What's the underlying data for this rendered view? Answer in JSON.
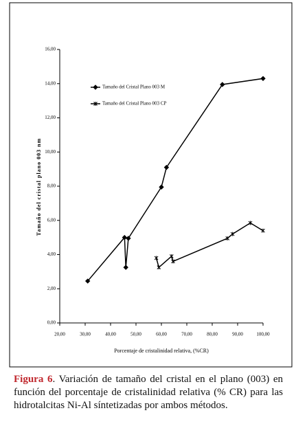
{
  "chart_data": {
    "type": "line",
    "xlabel": "Porcentaje de cristalinidad relativa, (%CR)",
    "ylabel": "Tamaño del cristal plano 003 nm",
    "xlim": [
      20,
      100
    ],
    "ylim": [
      0,
      16
    ],
    "xticks": [
      {
        "value": 20,
        "label": "20,00"
      },
      {
        "value": 30,
        "label": "30,00"
      },
      {
        "value": 40,
        "label": "40,00"
      },
      {
        "value": 50,
        "label": "50,00"
      },
      {
        "value": 60,
        "label": "60,00"
      },
      {
        "value": 70,
        "label": "70,00"
      },
      {
        "value": 80,
        "label": "80,00"
      },
      {
        "value": 90,
        "label": "90,00"
      },
      {
        "value": 100,
        "label": "100,00"
      }
    ],
    "yticks": [
      {
        "value": 0,
        "label": "0,00"
      },
      {
        "value": 2,
        "label": "2,00"
      },
      {
        "value": 4,
        "label": "4,00"
      },
      {
        "value": 6,
        "label": "6,00"
      },
      {
        "value": 8,
        "label": "8,00"
      },
      {
        "value": 10,
        "label": "10,00"
      },
      {
        "value": 12,
        "label": "12,00"
      },
      {
        "value": 14,
        "label": "14,00"
      },
      {
        "value": 16,
        "label": "16,00"
      }
    ],
    "legend": "upper left",
    "series": [
      {
        "name": "Tamaño del Cristal Plano 003 M",
        "color": "#000000",
        "marker": "diamond",
        "x": [
          31,
          45.5,
          46,
          47,
          60,
          62,
          84,
          100
        ],
        "values": [
          2.45,
          5.0,
          3.25,
          4.95,
          7.95,
          9.1,
          13.95,
          14.3
        ]
      },
      {
        "name": "Tamaño del Cristal Plano 003 CP",
        "color": "#000000",
        "marker": "x",
        "x": [
          58,
          59,
          64,
          64.6,
          86,
          88,
          95,
          100
        ],
        "values": [
          3.8,
          3.25,
          3.9,
          3.6,
          4.95,
          5.2,
          5.85,
          5.4
        ]
      }
    ]
  },
  "caption": {
    "label": "Figura 6",
    "text": ". Variación de tamaño del cristal en el plano (003) en función del porcentaje de cristalinidad relativa (% CR) para las hidrotalcitas Ni-Al síntetizadas por ambos métodos."
  }
}
